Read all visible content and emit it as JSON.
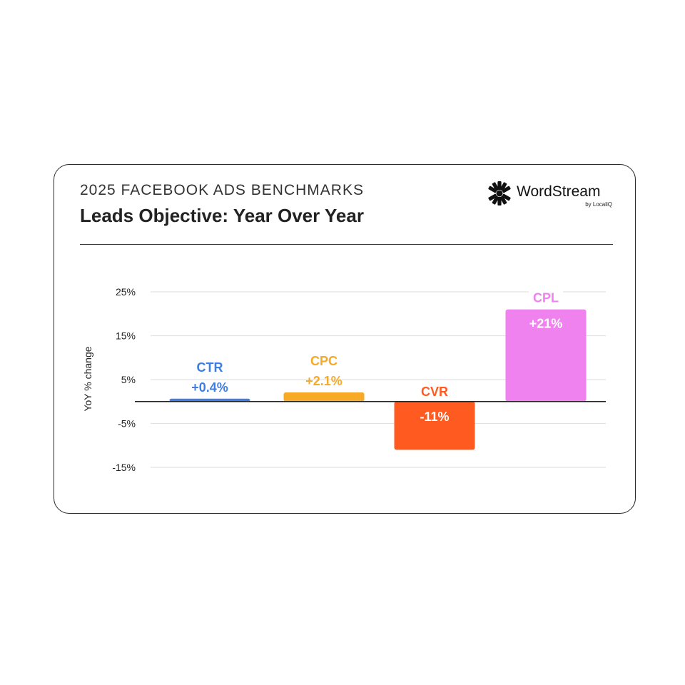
{
  "header": {
    "kicker": "2025 FACEBOOK ADS BENCHMARKS",
    "title": "Leads Objective: Year Over Year"
  },
  "brand": {
    "name": "WordStream",
    "sub": "by LocaliQ",
    "icon": "asterisk-burst-icon"
  },
  "chart_data": {
    "type": "bar",
    "categories": [
      "CTR",
      "CPC",
      "CVR",
      "CPL"
    ],
    "values": [
      0.4,
      2.1,
      -11,
      21
    ],
    "value_labels": [
      "+0.4%",
      "+2.1%",
      "-11%",
      "+21%"
    ],
    "colors": [
      "#3d7ee6",
      "#f7a928",
      "#ff5a1f",
      "#ef82ef"
    ],
    "label_colors": [
      "#3d7ee6",
      "#f7a928",
      "#ff5a1f",
      "#ef82ef"
    ],
    "ylabel": "YoY % change",
    "yticks": [
      25,
      15,
      5,
      -5,
      -15
    ],
    "ytick_labels": [
      "25%",
      "15%",
      "5%",
      "-5%",
      "-15%"
    ],
    "ylim": [
      -17,
      28
    ],
    "grid": true
  }
}
